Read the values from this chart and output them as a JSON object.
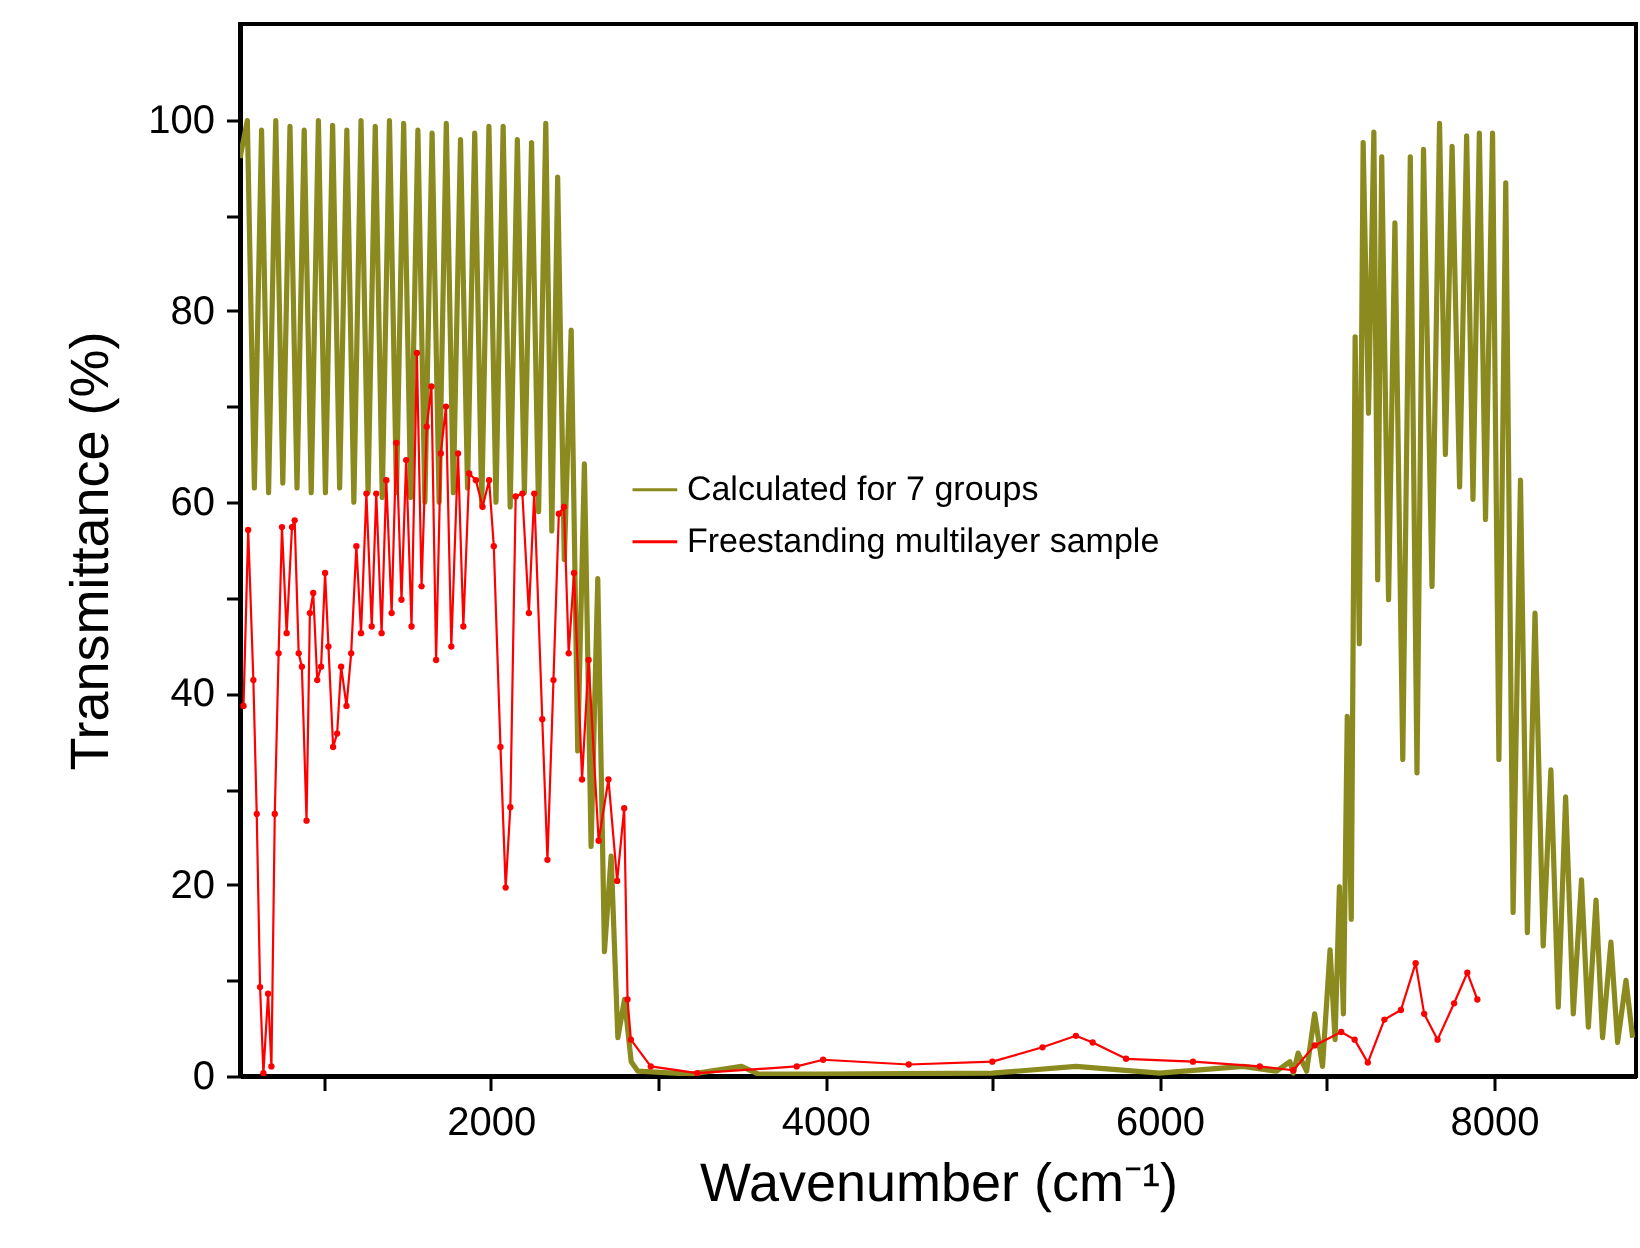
{
  "chart_data": {
    "type": "line",
    "xlabel": "Wavenumber (cm⁻¹)",
    "ylabel": "Transmittance (%)",
    "xlim": [
      500,
      8850
    ],
    "ylim": [
      0,
      110
    ],
    "xticks": [
      {
        "value": 1000,
        "label": null
      },
      2000,
      {
        "value": 3000,
        "label": null
      },
      4000,
      {
        "value": 5000,
        "label": null
      },
      6000,
      {
        "value": 7000,
        "label": null
      },
      8000
    ],
    "yticks": [
      0,
      {
        "value": 10,
        "label": null
      },
      20,
      {
        "value": 30,
        "label": null
      },
      40,
      {
        "value": 50,
        "label": null
      },
      60,
      {
        "value": 70,
        "label": null
      },
      80,
      {
        "value": 90,
        "label": null
      },
      100
    ],
    "grid": false,
    "legend": "center",
    "series": [
      {
        "name": "Calculated for 7 groups",
        "color": "#8a8a1e",
        "marker": "none",
        "x": [
          500,
          544,
          586,
          629,
          671,
          714,
          756,
          799,
          841,
          884,
          926,
          969,
          1011,
          1054,
          1096,
          1139,
          1181,
          1224,
          1266,
          1309,
          1351,
          1394,
          1436,
          1479,
          1521,
          1564,
          1606,
          1649,
          1691,
          1734,
          1776,
          1819,
          1861,
          1904,
          1946,
          1989,
          2031,
          2074,
          2116,
          2159,
          2201,
          2244,
          2286,
          2329,
          2365,
          2400,
          2440,
          2481,
          2520,
          2560,
          2600,
          2640,
          2680,
          2720,
          2760,
          2800,
          2840,
          2880,
          3200,
          3500,
          3600,
          4000,
          5000,
          5500,
          6000,
          6500,
          6700,
          6780,
          6800,
          6829,
          6880,
          6928,
          6975,
          7020,
          7050,
          7076,
          7100,
          7123,
          7147,
          7170,
          7195,
          7218,
          7250,
          7282,
          7305,
          7329,
          7370,
          7408,
          7455,
          7500,
          7540,
          7579,
          7630,
          7675,
          7710,
          7750,
          7795,
          7837,
          7875,
          7913,
          7950,
          7992,
          8030,
          8071,
          8115,
          8159,
          8200,
          8246,
          8295,
          8341,
          8385,
          8429,
          8475,
          8524,
          8565,
          8611,
          8650,
          8700,
          8740,
          8790,
          8830
        ],
        "values": [
          96,
          99.9,
          61.5,
          98.9,
          61,
          99.9,
          62,
          99.3,
          61.5,
          98.9,
          61,
          99.9,
          61,
          99.4,
          61.5,
          98.9,
          60,
          99.9,
          61,
          99.3,
          60.5,
          99.9,
          61,
          99.6,
          60.5,
          98.9,
          60,
          98.6,
          60,
          99.6,
          61,
          97.9,
          61.5,
          98.6,
          59.6,
          99.3,
          60,
          99.3,
          59.5,
          97.9,
          61,
          97.6,
          59,
          99.6,
          57,
          94,
          54,
          78,
          34,
          64,
          24,
          52,
          13,
          23,
          4,
          8,
          1.5,
          0.5,
          0.2,
          1,
          0.2,
          0.2,
          0.3,
          1,
          0.3,
          1,
          0.5,
          1.5,
          0.3,
          2.4,
          0.5,
          6.5,
          1,
          13.2,
          3.8,
          19.8,
          6.5,
          37.6,
          16.4,
          77.3,
          45.2,
          97.6,
          69.3,
          98.7,
          51.9,
          96.1,
          49.8,
          89.2,
          33.1,
          96.1,
          31.7,
          96.9,
          51.2,
          99.6,
          65,
          97.2,
          61.6,
          98.3,
          60.3,
          98.6,
          58.2,
          98.6,
          33.1,
          93.4,
          17.1,
          62.3,
          15,
          48.4,
          13.6,
          32,
          7.2,
          29.2,
          6.5,
          20.5,
          5.1,
          18.4,
          4,
          14,
          3.5,
          10,
          4
        ]
      },
      {
        "name": "Freestanding multilayer sample",
        "color": "#ff0000",
        "marker": "circle",
        "x": [
          521,
          549,
          580,
          600,
          620,
          640,
          668,
          688,
          708,
          731,
          751,
          779,
          811,
          827,
          851,
          870,
          898,
          918,
          938,
          962,
          985,
          1009,
          1029,
          1057,
          1081,
          1105,
          1137,
          1165,
          1196,
          1224,
          1256,
          1288,
          1315,
          1347,
          1375,
          1407,
          1435,
          1466,
          1494,
          1526,
          1558,
          1586,
          1617,
          1645,
          1673,
          1701,
          1732,
          1764,
          1804,
          1836,
          1871,
          1911,
          1951,
          1990,
          2018,
          2058,
          2089,
          2117,
          2149,
          2189,
          2228,
          2260,
          2308,
          2339,
          2375,
          2407,
          2438,
          2466,
          2498,
          2546,
          2585,
          2645,
          2704,
          2756,
          2798,
          2818,
          2838,
          2957,
          3235,
          3830,
          3988,
          4500,
          5000,
          5300,
          5500,
          5600,
          5800,
          6200,
          6600,
          6800,
          6928,
          7087,
          7167,
          7246,
          7345,
          7444,
          7532,
          7583,
          7663,
          7762,
          7841,
          7901
        ],
        "values": [
          38.7,
          57.1,
          41.4,
          27.4,
          9.3,
          0.3,
          8.6,
          1,
          27.4,
          44.2,
          57.4,
          46.3,
          57.4,
          58.1,
          44.2,
          42.8,
          26.7,
          48.4,
          50.5,
          41.4,
          42.8,
          52.6,
          44.9,
          34.4,
          35.8,
          42.8,
          38.7,
          44.2,
          55.4,
          46.3,
          60.9,
          47,
          60.9,
          46.3,
          62.3,
          48.4,
          66.2,
          49.8,
          64.4,
          47,
          75.6,
          51.2,
          67.9,
          72.1,
          43.5,
          65.1,
          70,
          44.9,
          65.1,
          47,
          63,
          62.3,
          59.5,
          62.3,
          55.4,
          34.4,
          19.7,
          28.1,
          60.6,
          60.9,
          48.4,
          60.9,
          37.3,
          22.6,
          41.4,
          58.8,
          59.5,
          44.2,
          52.6,
          31,
          43.5,
          24.6,
          31,
          20.4,
          28,
          8,
          3.8,
          1,
          0.3,
          1,
          1.7,
          1.2,
          1.5,
          3,
          4.2,
          3.5,
          1.8,
          1.5,
          1,
          0.6,
          3.2,
          4.6,
          3.8,
          1.4,
          5.9,
          6.9,
          11.8,
          6.5,
          3.8,
          7.6,
          10.8,
          8
        ]
      }
    ]
  }
}
